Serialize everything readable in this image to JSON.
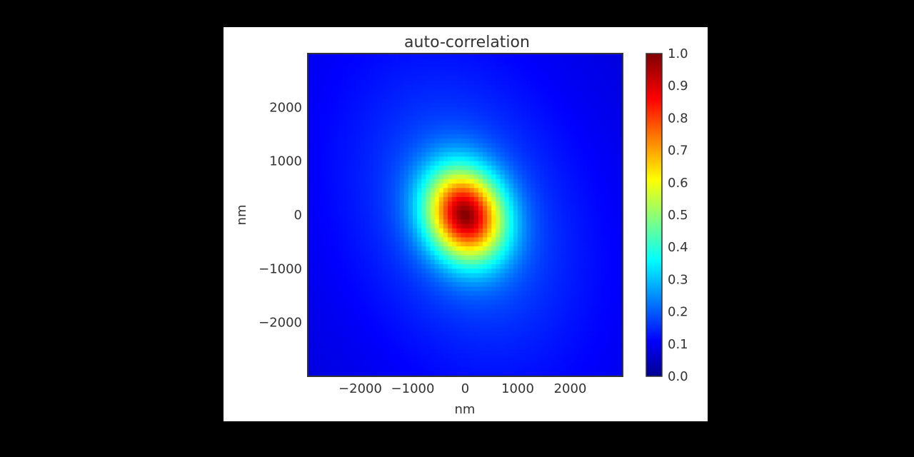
{
  "chart_data": {
    "type": "heatmap",
    "title": "auto-correlation",
    "xlabel": "nm",
    "ylabel": "nm",
    "xlim": [
      -3000,
      3000
    ],
    "ylim": [
      -3000,
      3000
    ],
    "x_ticks": [
      {
        "value": -2000,
        "label": "−2000"
      },
      {
        "value": -1000,
        "label": "−1000"
      },
      {
        "value": 0,
        "label": "0"
      },
      {
        "value": 1000,
        "label": "1000"
      },
      {
        "value": 2000,
        "label": "2000"
      }
    ],
    "y_ticks": [
      {
        "value": 2000,
        "label": "2000"
      },
      {
        "value": 1000,
        "label": "1000"
      },
      {
        "value": 0,
        "label": "0"
      },
      {
        "value": -1000,
        "label": "−1000"
      },
      {
        "value": -2000,
        "label": "−2000"
      }
    ],
    "colormap": "jet",
    "grid": false,
    "colorbar": {
      "range": [
        0.0,
        1.0
      ],
      "ticks": [
        {
          "value": 1.0,
          "label": "1.0"
        },
        {
          "value": 0.9,
          "label": "0.9"
        },
        {
          "value": 0.8,
          "label": "0.8"
        },
        {
          "value": 0.7,
          "label": "0.7"
        },
        {
          "value": 0.6,
          "label": "0.6"
        },
        {
          "value": 0.5,
          "label": "0.5"
        },
        {
          "value": 0.4,
          "label": "0.4"
        },
        {
          "value": 0.3,
          "label": "0.3"
        },
        {
          "value": 0.2,
          "label": "0.2"
        },
        {
          "value": 0.1,
          "label": "0.1"
        },
        {
          "value": 0.0,
          "label": "0.0"
        }
      ]
    },
    "peak": {
      "x": 0,
      "y": 0,
      "value": 1.0
    },
    "corner_value_min": 0.05
  },
  "colors": {
    "page_background": "#000000",
    "figure_background": "#ffffff",
    "text": "#333333",
    "axes_frame": "#333333"
  }
}
